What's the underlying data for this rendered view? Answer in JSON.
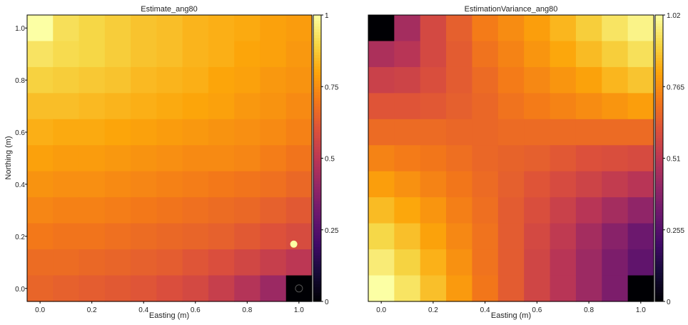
{
  "chart_data": [
    {
      "type": "heatmap",
      "title": "Estimate_ang80",
      "xlabel": "Easting (m)",
      "ylabel": "Northing (m)",
      "x_ticks": [
        "0.0",
        "0.2",
        "0.4",
        "0.6",
        "0.8",
        "1.0"
      ],
      "y_ticks": [
        "0.0",
        "0.2",
        "0.4",
        "0.6",
        "0.8",
        "1.0"
      ],
      "xlim": [
        -0.05,
        1.05
      ],
      "ylim": [
        -0.05,
        1.05
      ],
      "grid_size": [
        11,
        11
      ],
      "colormap": "inferno",
      "colorbar_range": [
        0,
        1
      ],
      "colorbar_ticks": [
        "0",
        "0.25",
        "0.5",
        "0.75",
        "1"
      ],
      "cell_values_top_to_bottom": [
        [
          1.0,
          0.92,
          0.9,
          0.88,
          0.86,
          0.85,
          0.83,
          0.82,
          0.81,
          0.79,
          0.78
        ],
        [
          0.93,
          0.91,
          0.9,
          0.88,
          0.86,
          0.85,
          0.83,
          0.82,
          0.8,
          0.79,
          0.77
        ],
        [
          0.89,
          0.88,
          0.87,
          0.86,
          0.84,
          0.83,
          0.82,
          0.8,
          0.79,
          0.77,
          0.76
        ],
        [
          0.85,
          0.85,
          0.84,
          0.83,
          0.82,
          0.81,
          0.8,
          0.79,
          0.77,
          0.76,
          0.74
        ],
        [
          0.82,
          0.81,
          0.81,
          0.8,
          0.79,
          0.78,
          0.77,
          0.76,
          0.75,
          0.74,
          0.72
        ],
        [
          0.79,
          0.78,
          0.78,
          0.77,
          0.76,
          0.75,
          0.74,
          0.74,
          0.73,
          0.71,
          0.69
        ],
        [
          0.76,
          0.75,
          0.75,
          0.74,
          0.73,
          0.72,
          0.71,
          0.7,
          0.69,
          0.68,
          0.66
        ],
        [
          0.73,
          0.72,
          0.72,
          0.71,
          0.7,
          0.69,
          0.68,
          0.67,
          0.66,
          0.64,
          0.62
        ],
        [
          0.7,
          0.69,
          0.69,
          0.68,
          0.67,
          0.66,
          0.65,
          0.64,
          0.62,
          0.6,
          0.58
        ],
        [
          0.67,
          0.67,
          0.66,
          0.65,
          0.64,
          0.63,
          0.61,
          0.59,
          0.56,
          0.53,
          0.5
        ],
        [
          0.65,
          0.64,
          0.63,
          0.62,
          0.61,
          0.59,
          0.57,
          0.53,
          0.48,
          0.42,
          0.0
        ]
      ],
      "markers": [
        {
          "x": 0.98,
          "y": 0.17,
          "value": 1.0
        },
        {
          "x": 1.0,
          "y": 0.0,
          "value": 0.0
        }
      ]
    },
    {
      "type": "heatmap",
      "title": "EstimationVariance_ang80",
      "xlabel": "Easting (m)",
      "ylabel": "",
      "x_ticks": [
        "0.0",
        "0.2",
        "0.4",
        "0.6",
        "0.8",
        "1.0"
      ],
      "y_ticks": [],
      "xlim": [
        -0.05,
        1.05
      ],
      "ylim": [
        -0.05,
        1.05
      ],
      "grid_size": [
        11,
        11
      ],
      "colormap": "inferno",
      "colorbar_range": [
        0,
        1.02
      ],
      "colorbar_ticks": [
        "0",
        "0.255",
        "0.51",
        "0.765",
        "1.02"
      ],
      "cell_values_top_to_bottom": [
        [
          0.0,
          0.45,
          0.58,
          0.65,
          0.72,
          0.76,
          0.8,
          0.85,
          0.9,
          0.95,
          0.99
        ],
        [
          0.47,
          0.5,
          0.58,
          0.64,
          0.7,
          0.74,
          0.78,
          0.82,
          0.86,
          0.9,
          0.94
        ],
        [
          0.55,
          0.56,
          0.6,
          0.64,
          0.68,
          0.72,
          0.75,
          0.78,
          0.81,
          0.85,
          0.88
        ],
        [
          0.62,
          0.62,
          0.63,
          0.65,
          0.67,
          0.7,
          0.72,
          0.74,
          0.76,
          0.78,
          0.8
        ],
        [
          0.68,
          0.68,
          0.68,
          0.67,
          0.67,
          0.68,
          0.68,
          0.68,
          0.68,
          0.68,
          0.68
        ],
        [
          0.74,
          0.72,
          0.71,
          0.69,
          0.67,
          0.66,
          0.65,
          0.63,
          0.61,
          0.6,
          0.59
        ],
        [
          0.8,
          0.77,
          0.74,
          0.71,
          0.68,
          0.65,
          0.62,
          0.59,
          0.56,
          0.53,
          0.5
        ],
        [
          0.86,
          0.82,
          0.78,
          0.73,
          0.69,
          0.64,
          0.6,
          0.55,
          0.5,
          0.45,
          0.4
        ],
        [
          0.92,
          0.87,
          0.81,
          0.75,
          0.7,
          0.64,
          0.58,
          0.52,
          0.45,
          0.38,
          0.31
        ],
        [
          0.97,
          0.91,
          0.84,
          0.77,
          0.7,
          0.64,
          0.57,
          0.5,
          0.43,
          0.35,
          0.28
        ],
        [
          1.02,
          0.95,
          0.87,
          0.79,
          0.71,
          0.64,
          0.57,
          0.5,
          0.43,
          0.35,
          0.0
        ]
      ],
      "markers": []
    }
  ]
}
